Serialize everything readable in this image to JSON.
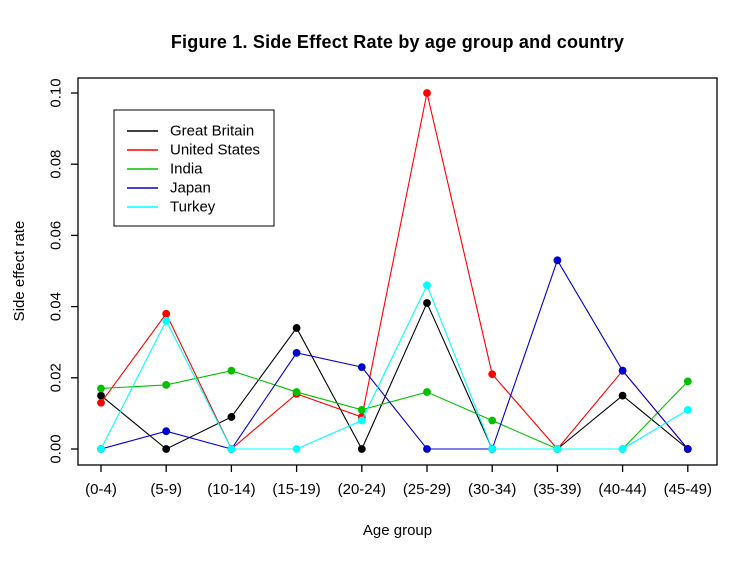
{
  "chart_data": {
    "type": "line",
    "title": "Figure 1. Side Effect Rate by age group and country",
    "xlabel": "Age group",
    "ylabel": "Side effect rate",
    "categories": [
      "(0-4)",
      "(5-9)",
      "(10-14)",
      "(15-19)",
      "(20-24)",
      "(25-29)",
      "(30-34)",
      "(35-39)",
      "(40-44)",
      "(45-49)"
    ],
    "y_tick_labels": [
      "0.00",
      "0.02",
      "0.04",
      "0.06",
      "0.08",
      "0.10"
    ],
    "ylim": [
      0.0,
      0.1
    ],
    "grid": false,
    "legend_position": "top-left-inside",
    "marker": "filled-circle",
    "series": [
      {
        "name": "Great Britain",
        "color": "#000000",
        "values": [
          0.015,
          0.0,
          0.009,
          0.034,
          0.0,
          0.041,
          0.0,
          0.0,
          0.015,
          0.0
        ]
      },
      {
        "name": "United States",
        "color": "#FF0000",
        "values": [
          0.013,
          0.038,
          0.0,
          0.0155,
          0.009,
          0.1,
          0.021,
          0.0,
          0.022,
          0.0
        ]
      },
      {
        "name": "India",
        "color": "#00C000",
        "values": [
          0.017,
          0.018,
          0.022,
          0.016,
          0.011,
          0.016,
          0.008,
          0.0,
          0.0,
          0.019
        ]
      },
      {
        "name": "Japan",
        "color": "#0000CD",
        "values": [
          0.0,
          0.005,
          0.0,
          0.027,
          0.023,
          0.0,
          0.0,
          0.053,
          0.022,
          0.0
        ]
      },
      {
        "name": "Turkey",
        "color": "#00FFFF",
        "values": [
          0.0,
          0.036,
          0.0,
          0.0,
          0.008,
          0.046,
          0.0,
          0.0,
          0.0,
          0.011
        ]
      }
    ]
  }
}
